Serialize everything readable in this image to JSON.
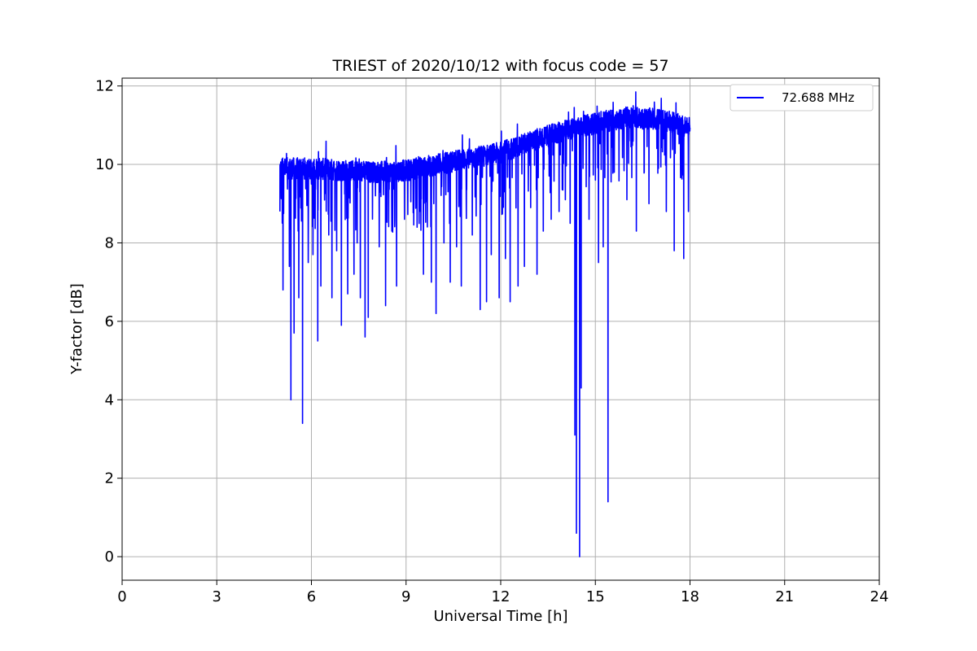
{
  "chart_data": {
    "type": "line",
    "title": "TRIEST of 2020/10/12 with focus code = 57",
    "xlabel": "Universal Time [h]",
    "ylabel": "Y-factor [dB]",
    "xlim": [
      0,
      24
    ],
    "ylim": [
      -0.6,
      12.2
    ],
    "xticks": [
      0,
      3,
      6,
      9,
      12,
      15,
      18,
      21,
      24
    ],
    "yticks": [
      0,
      2,
      4,
      6,
      8,
      10,
      12
    ],
    "grid": true,
    "legend_position": "top-right",
    "series": [
      {
        "name": "72.688 MHz",
        "color": "#0000ff",
        "baseline": [
          [
            5.0,
            9.9
          ],
          [
            6.0,
            9.9
          ],
          [
            7.0,
            9.85
          ],
          [
            8.0,
            9.8
          ],
          [
            9.0,
            9.85
          ],
          [
            10.0,
            10.0
          ],
          [
            11.0,
            10.15
          ],
          [
            12.0,
            10.3
          ],
          [
            13.0,
            10.6
          ],
          [
            14.0,
            10.85
          ],
          [
            15.0,
            11.05
          ],
          [
            16.0,
            11.2
          ],
          [
            17.0,
            11.15
          ],
          [
            18.0,
            10.95
          ]
        ],
        "dips": [
          [
            5.0,
            8.8
          ],
          [
            5.1,
            6.8
          ],
          [
            5.3,
            7.4
          ],
          [
            5.35,
            4.0
          ],
          [
            5.45,
            5.7
          ],
          [
            5.6,
            6.6
          ],
          [
            5.72,
            3.4
          ],
          [
            5.9,
            7.5
          ],
          [
            6.05,
            7.7
          ],
          [
            6.2,
            5.5
          ],
          [
            6.3,
            6.9
          ],
          [
            6.55,
            8.2
          ],
          [
            6.65,
            6.6
          ],
          [
            6.8,
            7.8
          ],
          [
            6.95,
            5.9
          ],
          [
            7.15,
            6.7
          ],
          [
            7.35,
            7.2
          ],
          [
            7.45,
            8.0
          ],
          [
            7.55,
            6.6
          ],
          [
            7.7,
            5.6
          ],
          [
            7.8,
            6.1
          ],
          [
            8.15,
            7.9
          ],
          [
            8.35,
            6.4
          ],
          [
            8.55,
            8.3
          ],
          [
            8.7,
            6.9
          ],
          [
            8.95,
            8.6
          ],
          [
            9.15,
            7.9
          ],
          [
            9.35,
            8.4
          ],
          [
            9.55,
            7.2
          ],
          [
            9.8,
            7.0
          ],
          [
            9.95,
            6.2
          ],
          [
            10.2,
            8.0
          ],
          [
            10.4,
            7.0
          ],
          [
            10.6,
            7.9
          ],
          [
            10.75,
            6.9
          ],
          [
            11.1,
            8.2
          ],
          [
            11.35,
            6.3
          ],
          [
            11.55,
            6.5
          ],
          [
            11.7,
            7.7
          ],
          [
            11.95,
            6.6
          ],
          [
            12.15,
            7.6
          ],
          [
            12.3,
            6.5
          ],
          [
            12.55,
            6.9
          ],
          [
            12.75,
            7.4
          ],
          [
            12.95,
            8.9
          ],
          [
            13.15,
            7.2
          ],
          [
            13.35,
            8.3
          ],
          [
            13.6,
            8.6
          ],
          [
            13.85,
            8.8
          ],
          [
            14.05,
            9.1
          ],
          [
            14.2,
            8.5
          ],
          [
            14.35,
            3.1
          ],
          [
            14.4,
            0.6
          ],
          [
            14.5,
            0.0
          ],
          [
            14.55,
            4.3
          ],
          [
            14.8,
            8.6
          ],
          [
            15.0,
            9.6
          ],
          [
            15.1,
            7.5
          ],
          [
            15.25,
            7.9
          ],
          [
            15.4,
            1.4
          ],
          [
            15.6,
            9.8
          ],
          [
            15.75,
            9.2
          ],
          [
            16.0,
            9.1
          ],
          [
            16.3,
            8.3
          ],
          [
            16.55,
            9.8
          ],
          [
            16.7,
            9.0
          ],
          [
            17.0,
            9.9
          ],
          [
            17.25,
            8.8
          ],
          [
            17.5,
            7.8
          ],
          [
            17.8,
            7.6
          ],
          [
            17.95,
            8.8
          ]
        ]
      }
    ]
  }
}
